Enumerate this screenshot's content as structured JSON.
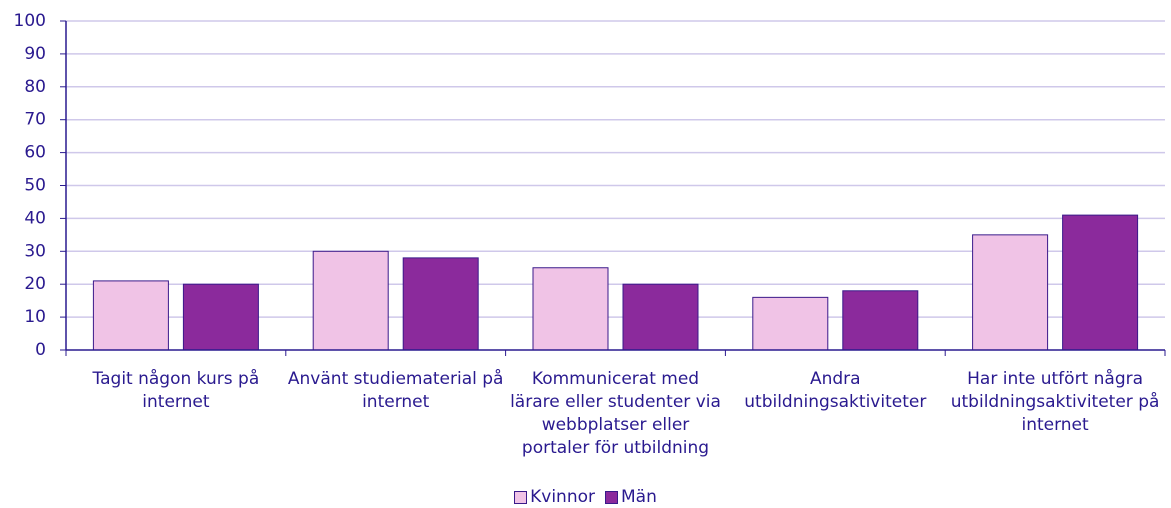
{
  "chart_data": {
    "type": "bar",
    "categories": [
      "Tagit någon kurs på internet",
      "Använt studiematerial på internet",
      "Kommunicerat med lärare eller studenter via webbplatser eller portaler för utbildning",
      "Andra utbildningsaktiviteter",
      "Har inte utfört några utbildningsaktiviteter på internet"
    ],
    "series": [
      {
        "name": "Kvinnor",
        "color": "#f0c3e6",
        "values": [
          21,
          30,
          25,
          16,
          35
        ]
      },
      {
        "name": "Män",
        "color": "#8b2a9c",
        "values": [
          20,
          28,
          20,
          18,
          41
        ]
      }
    ],
    "ylim": [
      0,
      100
    ],
    "yticks": [
      0,
      10,
      20,
      30,
      40,
      50,
      60,
      70,
      80,
      90,
      100
    ],
    "grid": true,
    "legend": "bottom"
  }
}
